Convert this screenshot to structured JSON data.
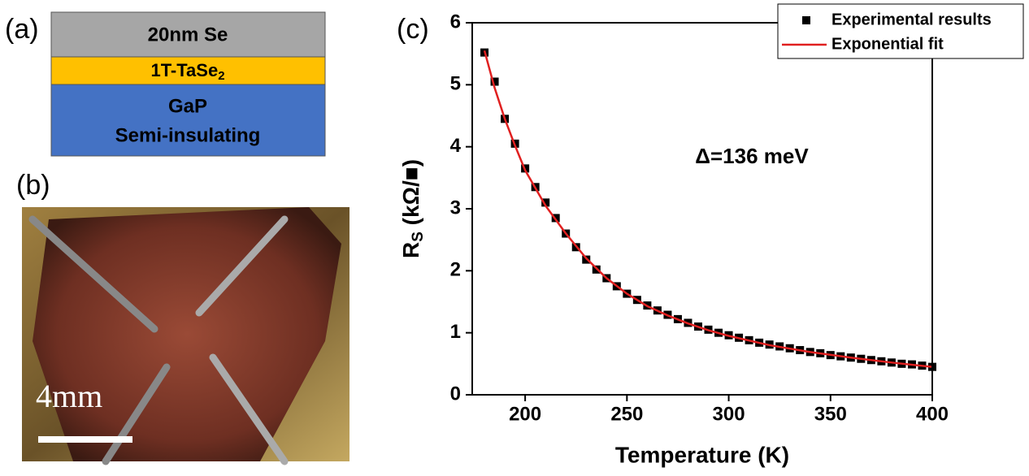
{
  "panels": {
    "a": {
      "label": "(a)",
      "layers": [
        "20nm Se",
        [
          "1T-TaSe",
          "2"
        ],
        "GaP",
        "Semi-insulating"
      ]
    },
    "b": {
      "label": "(b)",
      "scale_text": "4mm"
    },
    "c": {
      "label": "(c)"
    }
  },
  "chart_data": {
    "type": "scatter-line",
    "x_label": "Temperature (K)",
    "y_label": [
      "R",
      "S",
      " (kΩ/■)"
    ],
    "annotation": "Δ=136 meV",
    "xlim": [
      174,
      400
    ],
    "ylim": [
      0,
      6
    ],
    "xticks": [
      200,
      250,
      300,
      350,
      400
    ],
    "yticks": [
      0,
      1,
      2,
      3,
      4,
      5,
      6
    ],
    "legend": "top-right",
    "series": [
      {
        "name": "Experimental results",
        "color": "#000000",
        "kind": "points",
        "x": [
          180,
          185,
          190,
          195,
          200,
          205,
          210,
          215,
          220,
          225,
          230,
          235,
          240,
          245,
          250,
          255,
          260,
          265,
          270,
          275,
          280,
          285,
          290,
          295,
          300,
          305,
          310,
          315,
          320,
          325,
          330,
          335,
          340,
          345,
          350,
          355,
          360,
          365,
          370,
          375,
          380,
          385,
          390,
          395,
          400
        ],
        "values": [
          5.52,
          5.05,
          4.45,
          4.05,
          3.65,
          3.35,
          3.1,
          2.85,
          2.6,
          2.38,
          2.18,
          2.02,
          1.88,
          1.75,
          1.63,
          1.53,
          1.44,
          1.36,
          1.29,
          1.22,
          1.16,
          1.1,
          1.05,
          1.0,
          0.96,
          0.92,
          0.88,
          0.84,
          0.81,
          0.78,
          0.75,
          0.72,
          0.69,
          0.67,
          0.64,
          0.62,
          0.6,
          0.58,
          0.56,
          0.54,
          0.52,
          0.5,
          0.49,
          0.47,
          0.45
        ]
      },
      {
        "name": "Exponential fit",
        "color": "#e02020",
        "kind": "line",
        "x": [
          180,
          185,
          190,
          195,
          200,
          210,
          220,
          230,
          240,
          250,
          260,
          270,
          280,
          290,
          300,
          320,
          340,
          360,
          380,
          400
        ],
        "values": [
          5.55,
          4.95,
          4.45,
          4.02,
          3.62,
          3.05,
          2.6,
          2.2,
          1.88,
          1.63,
          1.43,
          1.28,
          1.15,
          1.04,
          0.95,
          0.8,
          0.69,
          0.6,
          0.52,
          0.45
        ]
      }
    ]
  }
}
